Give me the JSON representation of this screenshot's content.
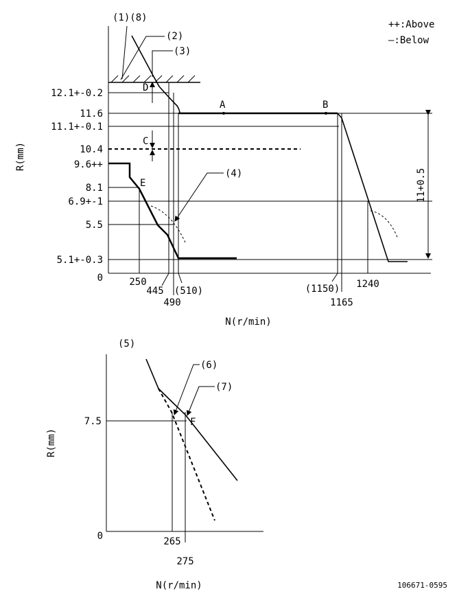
{
  "legend": {
    "above": "++:Above",
    "below": "—:Below"
  },
  "drawing_id": "106671-0595",
  "top_chart": {
    "callouts": {
      "c1_8": "(1)(8)",
      "c2": "(2)",
      "c3": "(3)",
      "c4": "(4)"
    },
    "points": {
      "A": "A",
      "B": "B",
      "C": "C",
      "D": "D",
      "E": "E"
    },
    "y_axis_label": "R(mm)",
    "x_axis_label": "N(r/min)",
    "origin": "0",
    "y_ticks": {
      "t12_1": "12.1+-0.2",
      "t11_6": "11.6",
      "t11_1": "11.1+-0.1",
      "t10_4": "10.4",
      "t9_6": "9.6++",
      "t8_1": "8.1",
      "t6_9": "6.9+-1",
      "t5_5": "5.5",
      "t5_1": "5.1+-0.3"
    },
    "x_ticks": {
      "t250": "250",
      "t445": "445",
      "t490": "490",
      "t510": "(510)",
      "t1150": "(1150)",
      "t1165": "1165",
      "t1240": "1240"
    },
    "dimension": "11+0.5"
  },
  "bottom_chart": {
    "callouts": {
      "c5": "(5)",
      "c6": "(6)",
      "c7": "(7)"
    },
    "point_f": "F",
    "y_axis_label": "R(mm)",
    "x_axis_label": "N(r/min)",
    "origin": "0",
    "y_tick": "7.5",
    "x_ticks": {
      "t265": "265",
      "t275": "275"
    }
  }
}
